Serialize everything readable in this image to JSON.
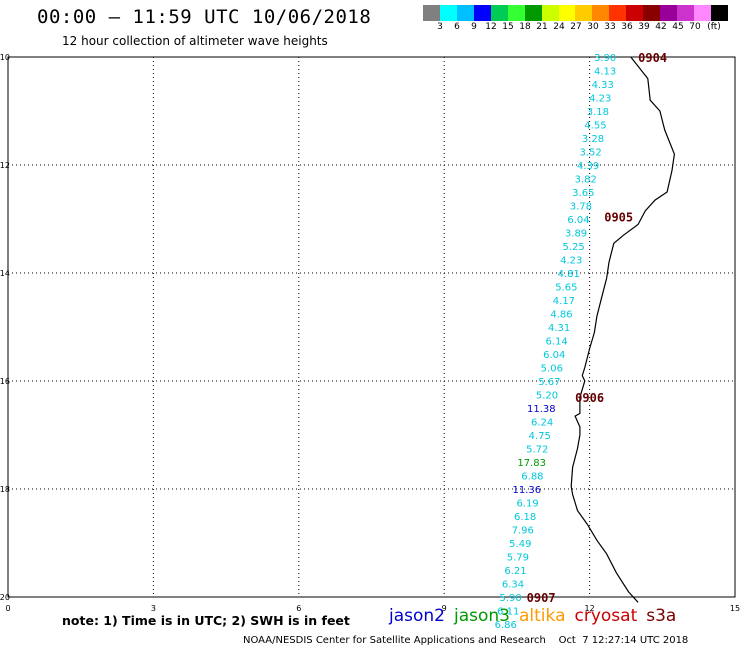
{
  "header": {
    "title": "00:00 – 11:59 UTC 10/06/2018",
    "subtitle": "12 hour collection of altimeter wave heights"
  },
  "color_scale": {
    "colors": [
      "#808080",
      "#00ffff",
      "#00bfff",
      "#0000ff",
      "#00cc55",
      "#33ff33",
      "#009900",
      "#ccff00",
      "#ffff00",
      "#ffcc00",
      "#ff8800",
      "#ff3300",
      "#cc0000",
      "#880000",
      "#990099",
      "#cc33cc",
      "#ff88ff",
      "#000000"
    ],
    "labels": [
      "3",
      "6",
      "9",
      "12",
      "15",
      "18",
      "21",
      "24",
      "27",
      "30",
      "33",
      "36",
      "39",
      "42",
      "45",
      "70",
      "(ft)"
    ]
  },
  "map": {
    "lat_labels": [
      "-10",
      "-12",
      "-14",
      "-16",
      "-18",
      "-20"
    ],
    "lon_labels": [
      "0",
      "3",
      "6",
      "9",
      "12",
      "15"
    ],
    "lat_range": [
      -20,
      -10
    ],
    "lon_range": [
      0,
      15
    ],
    "track_colors": {
      "jason2": "#0000cc",
      "jason3": "#009900",
      "altika": "#ff9900",
      "cryosat": "#cc0000",
      "s3a": "#770000",
      "default": "#00c8dc"
    },
    "coastline": [
      [
        12.85,
        -10.0
      ],
      [
        13.2,
        -10.4
      ],
      [
        13.25,
        -10.8
      ],
      [
        13.45,
        -11.0
      ],
      [
        13.55,
        -11.35
      ],
      [
        13.75,
        -11.8
      ],
      [
        13.7,
        -12.1
      ],
      [
        13.6,
        -12.5
      ],
      [
        13.35,
        -12.65
      ],
      [
        13.15,
        -12.85
      ],
      [
        13.0,
        -13.1
      ],
      [
        12.7,
        -13.3
      ],
      [
        12.5,
        -13.45
      ],
      [
        12.4,
        -13.8
      ],
      [
        12.35,
        -14.1
      ],
      [
        12.25,
        -14.45
      ],
      [
        12.15,
        -14.8
      ],
      [
        12.1,
        -15.1
      ],
      [
        12.0,
        -15.4
      ],
      [
        11.9,
        -15.75
      ],
      [
        11.85,
        -15.9
      ],
      [
        11.9,
        -16.0
      ],
      [
        11.8,
        -16.3
      ],
      [
        11.8,
        -16.6
      ],
      [
        11.7,
        -16.65
      ],
      [
        11.8,
        -16.85
      ],
      [
        11.8,
        -17.0
      ],
      [
        11.75,
        -17.25
      ],
      [
        11.65,
        -17.6
      ],
      [
        11.62,
        -17.95
      ],
      [
        11.65,
        -18.1
      ],
      [
        11.75,
        -18.4
      ],
      [
        11.95,
        -18.65
      ],
      [
        12.15,
        -18.95
      ],
      [
        12.35,
        -19.2
      ],
      [
        12.55,
        -19.55
      ],
      [
        12.8,
        -19.9
      ],
      [
        13.0,
        -20.1
      ]
    ],
    "track_labels": [
      {
        "text": "3.90",
        "lon": 12.55,
        "lat": -10.0,
        "sat": "default"
      },
      {
        "text": "4.13",
        "lon": 12.55,
        "lat": -10.25,
        "sat": "default"
      },
      {
        "text": "4.33",
        "lon": 12.5,
        "lat": -10.5,
        "sat": "default"
      },
      {
        "text": "4.23",
        "lon": 12.45,
        "lat": -10.75,
        "sat": "default"
      },
      {
        "text": "3.18",
        "lon": 12.4,
        "lat": -11.0,
        "sat": "default"
      },
      {
        "text": "4.55",
        "lon": 12.35,
        "lat": -11.25,
        "sat": "default"
      },
      {
        "text": "3.28",
        "lon": 12.3,
        "lat": -11.5,
        "sat": "default"
      },
      {
        "text": "3.52",
        "lon": 12.25,
        "lat": -11.75,
        "sat": "default"
      },
      {
        "text": "4.39",
        "lon": 12.2,
        "lat": -12.0,
        "sat": "default"
      },
      {
        "text": "3.82",
        "lon": 12.15,
        "lat": -12.25,
        "sat": "default"
      },
      {
        "text": "3.65",
        "lon": 12.1,
        "lat": -12.5,
        "sat": "default"
      },
      {
        "text": "3.78",
        "lon": 12.05,
        "lat": -12.75,
        "sat": "default"
      },
      {
        "text": "6.04",
        "lon": 12.0,
        "lat": -13.0,
        "sat": "default"
      },
      {
        "text": "3.89",
        "lon": 11.95,
        "lat": -13.25,
        "sat": "default"
      },
      {
        "text": "5.25",
        "lon": 11.9,
        "lat": -13.5,
        "sat": "default"
      },
      {
        "text": "4.23",
        "lon": 11.85,
        "lat": -13.75,
        "sat": "default"
      },
      {
        "text": "4.81",
        "lon": 11.8,
        "lat": -14.0,
        "sat": "default"
      },
      {
        "text": "5.65",
        "lon": 11.75,
        "lat": -14.25,
        "sat": "default"
      },
      {
        "text": "4.17",
        "lon": 11.7,
        "lat": -14.5,
        "sat": "default"
      },
      {
        "text": "4.86",
        "lon": 11.65,
        "lat": -14.75,
        "sat": "default"
      },
      {
        "text": "4.31",
        "lon": 11.6,
        "lat": -15.0,
        "sat": "default"
      },
      {
        "text": "6.14",
        "lon": 11.55,
        "lat": -15.25,
        "sat": "default"
      },
      {
        "text": "6.04",
        "lon": 11.5,
        "lat": -15.5,
        "sat": "default"
      },
      {
        "text": "5.06",
        "lon": 11.45,
        "lat": -15.75,
        "sat": "default"
      },
      {
        "text": "5.67",
        "lon": 11.4,
        "lat": -16.0,
        "sat": "default"
      },
      {
        "text": "5.20",
        "lon": 11.35,
        "lat": -16.25,
        "sat": "default"
      },
      {
        "text": "11.38",
        "lon": 11.3,
        "lat": -16.5,
        "sat": "jason2"
      },
      {
        "text": "6.24",
        "lon": 11.25,
        "lat": -16.75,
        "sat": "default"
      },
      {
        "text": "4.75",
        "lon": 11.2,
        "lat": -17.0,
        "sat": "default"
      },
      {
        "text": "5.72",
        "lon": 11.15,
        "lat": -17.25,
        "sat": "default"
      },
      {
        "text": "17.83",
        "lon": 11.1,
        "lat": -17.5,
        "sat": "jason3"
      },
      {
        "text": "6.88",
        "lon": 11.05,
        "lat": -17.75,
        "sat": "default"
      },
      {
        "text": "11.36",
        "lon": 11.0,
        "lat": -18.0,
        "sat": "jason2"
      },
      {
        "text": "6.19",
        "lon": 10.95,
        "lat": -18.25,
        "sat": "default"
      },
      {
        "text": "6.18",
        "lon": 10.9,
        "lat": -18.5,
        "sat": "default"
      },
      {
        "text": "7.96",
        "lon": 10.85,
        "lat": -18.75,
        "sat": "default"
      },
      {
        "text": "5.49",
        "lon": 10.8,
        "lat": -19.0,
        "sat": "default"
      },
      {
        "text": "5.79",
        "lon": 10.75,
        "lat": -19.25,
        "sat": "default"
      },
      {
        "text": "6.21",
        "lon": 10.7,
        "lat": -19.5,
        "sat": "default"
      },
      {
        "text": "6.34",
        "lon": 10.65,
        "lat": -19.75,
        "sat": "default"
      },
      {
        "text": "5.90",
        "lon": 10.6,
        "lat": -20.0,
        "sat": "default"
      },
      {
        "text": "6.11",
        "lon": 10.55,
        "lat": -20.25,
        "sat": "default"
      },
      {
        "text": "6.86",
        "lon": 10.5,
        "lat": -20.5,
        "sat": "default"
      }
    ],
    "time_labels": [
      {
        "text": "0904",
        "lon": 13.3,
        "lat": -10.0
      },
      {
        "text": "0905",
        "lon": 12.6,
        "lat": -12.95
      },
      {
        "text": "0906",
        "lon": 12.0,
        "lat": -16.3
      },
      {
        "text": "0907",
        "lon": 11.0,
        "lat": -20.0
      }
    ]
  },
  "note": "note:  1) Time is in UTC;  2) SWH is in feet",
  "legend": [
    {
      "name": "jason2",
      "color": "#0000cc"
    },
    {
      "name": "jason3",
      "color": "#009900"
    },
    {
      "name": "altika",
      "color": "#ff9900"
    },
    {
      "name": "cryosat",
      "color": "#cc0000"
    },
    {
      "name": "s3a",
      "color": "#770000"
    }
  ],
  "footer": "NOAA/NESDIS Center for Satellite Applications and Research    Oct  7 12:27:14 UTC 2018"
}
